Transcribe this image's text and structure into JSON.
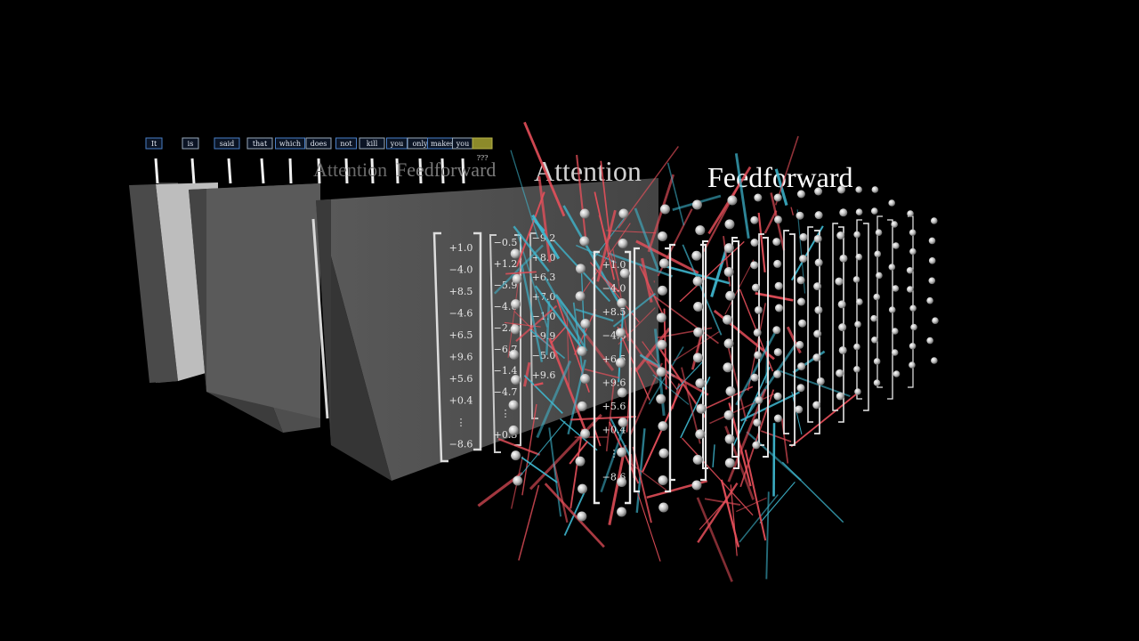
{
  "tokens": [
    "It",
    "is",
    "said",
    "that",
    "which",
    "does",
    "not",
    "kill",
    "you",
    "only",
    "makes",
    "you",
    ""
  ],
  "next_token_label": "???",
  "blocks": [
    {
      "attention_label": "Attention",
      "feedforward_label": "Feedforward"
    },
    {
      "attention_label": "Attention",
      "feedforward_label": "Feedforward"
    }
  ],
  "embedding_vector": [
    "+1.0",
    "−4.0",
    "+8.5",
    "−4.6",
    "+6.5",
    "+9.6",
    "+5.6",
    "+0.4",
    "⋮",
    "−8.6"
  ],
  "vector_column_2": [
    "−0.5",
    "+1.2",
    "−5.9",
    "−4.6",
    "−2.8",
    "−6.7",
    "−1.4",
    "−4.7",
    "⋮",
    "+0.3"
  ],
  "vector_column_3": [
    "−9.2",
    "+8.0",
    "+6.3",
    "+7.0",
    "−1.0",
    "−9.9",
    "−5.0",
    "+9.6"
  ],
  "front_vector": [
    "+1.0",
    "−4.0",
    "+8.5",
    "−4.6",
    "+6.5",
    "+9.6",
    "+5.6",
    "+0.4",
    "⋮",
    "−8.6"
  ],
  "colors": {
    "background": "#000000",
    "attention_lines": "#e8505b",
    "cyan_lines": "#3fb8d0",
    "node": "#cfcfcf",
    "token_border": "#4a7fc7",
    "next_token": "#8c8a2a"
  }
}
